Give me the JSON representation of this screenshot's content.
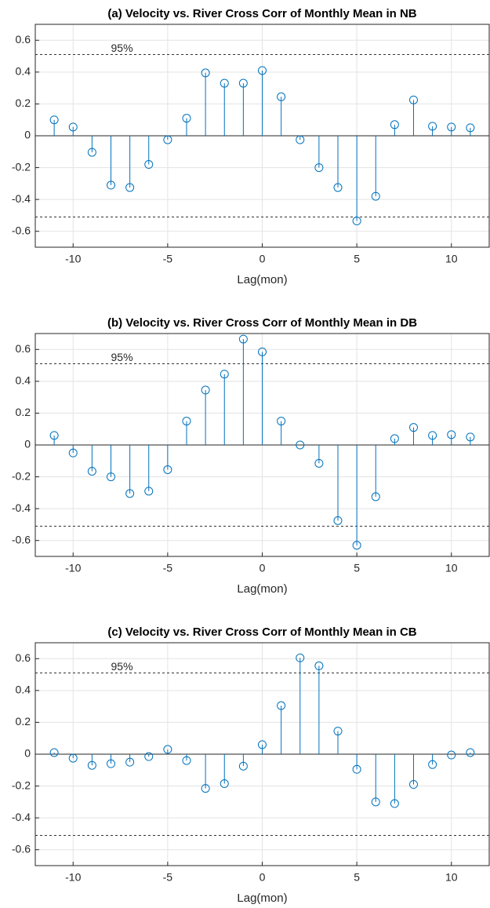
{
  "chart_data": [
    {
      "type": "stem",
      "title": "(a) Velocity vs. River Cross Corr of Monthly Mean in NB",
      "xlabel": "Lag(mon)",
      "x": [
        -11,
        -10,
        -9,
        -8,
        -7,
        -6,
        -5,
        -4,
        -3,
        -2,
        -1,
        0,
        1,
        2,
        3,
        4,
        5,
        6,
        7,
        8,
        9,
        10,
        11
      ],
      "values": [
        0.1,
        0.055,
        -0.104,
        -0.31,
        -0.325,
        -0.18,
        -0.025,
        0.11,
        0.395,
        0.33,
        0.33,
        0.41,
        0.245,
        -0.025,
        -0.2,
        -0.325,
        -0.535,
        -0.38,
        0.07,
        0.225,
        0.06,
        0.055,
        0.05
      ],
      "color": "#0072bd",
      "xlim": [
        -12,
        12
      ],
      "ylim": [
        -0.7,
        0.7
      ],
      "xticks": [
        -10,
        -5,
        0,
        5,
        10
      ],
      "yticks": [
        -0.6,
        -0.4,
        -0.2,
        0,
        0.2,
        0.4,
        0.6
      ],
      "grid": true,
      "reference_lines": {
        "values": [
          0.51,
          -0.51
        ],
        "label": "95%"
      }
    },
    {
      "type": "stem",
      "title": "(b) Velocity vs. River Cross Corr of Monthly Mean in DB",
      "xlabel": "Lag(mon)",
      "x": [
        -11,
        -10,
        -9,
        -8,
        -7,
        -6,
        -5,
        -4,
        -3,
        -2,
        -1,
        0,
        1,
        2,
        3,
        4,
        5,
        6,
        7,
        8,
        9,
        10,
        11
      ],
      "values": [
        0.06,
        -0.05,
        -0.165,
        -0.2,
        -0.305,
        -0.29,
        -0.155,
        0.15,
        0.345,
        0.445,
        0.665,
        0.585,
        0.15,
        0,
        -0.115,
        -0.475,
        -0.63,
        -0.325,
        0.04,
        0.11,
        0.06,
        0.065,
        0.05
      ],
      "color": "#0072bd",
      "xlim": [
        -12,
        12
      ],
      "ylim": [
        -0.7,
        0.7
      ],
      "xticks": [
        -10,
        -5,
        0,
        5,
        10
      ],
      "yticks": [
        -0.6,
        -0.4,
        -0.2,
        0,
        0.2,
        0.4,
        0.6
      ],
      "grid": true,
      "reference_lines": {
        "values": [
          0.51,
          -0.51
        ],
        "label": "95%"
      }
    },
    {
      "type": "stem",
      "title": "(c) Velocity vs. River Cross Corr of Monthly Mean in CB",
      "xlabel": "Lag(mon)",
      "x": [
        -11,
        -10,
        -9,
        -8,
        -7,
        -6,
        -5,
        -4,
        -3,
        -2,
        -1,
        0,
        1,
        2,
        3,
        4,
        5,
        6,
        7,
        8,
        9,
        10,
        11
      ],
      "values": [
        0.01,
        -0.025,
        -0.07,
        -0.06,
        -0.05,
        -0.015,
        0.03,
        -0.04,
        -0.215,
        -0.185,
        -0.075,
        0.06,
        0.305,
        0.605,
        0.555,
        0.145,
        -0.095,
        -0.3,
        -0.31,
        -0.19,
        -0.065,
        -0.005,
        0.01
      ],
      "color": "#0072bd",
      "xlim": [
        -12,
        12
      ],
      "ylim": [
        -0.7,
        0.7
      ],
      "xticks": [
        -10,
        -5,
        0,
        5,
        10
      ],
      "yticks": [
        -0.6,
        -0.4,
        -0.2,
        0,
        0.2,
        0.4,
        0.6
      ],
      "grid": true,
      "reference_lines": {
        "values": [
          0.51,
          -0.51
        ],
        "label": "95%"
      }
    }
  ]
}
